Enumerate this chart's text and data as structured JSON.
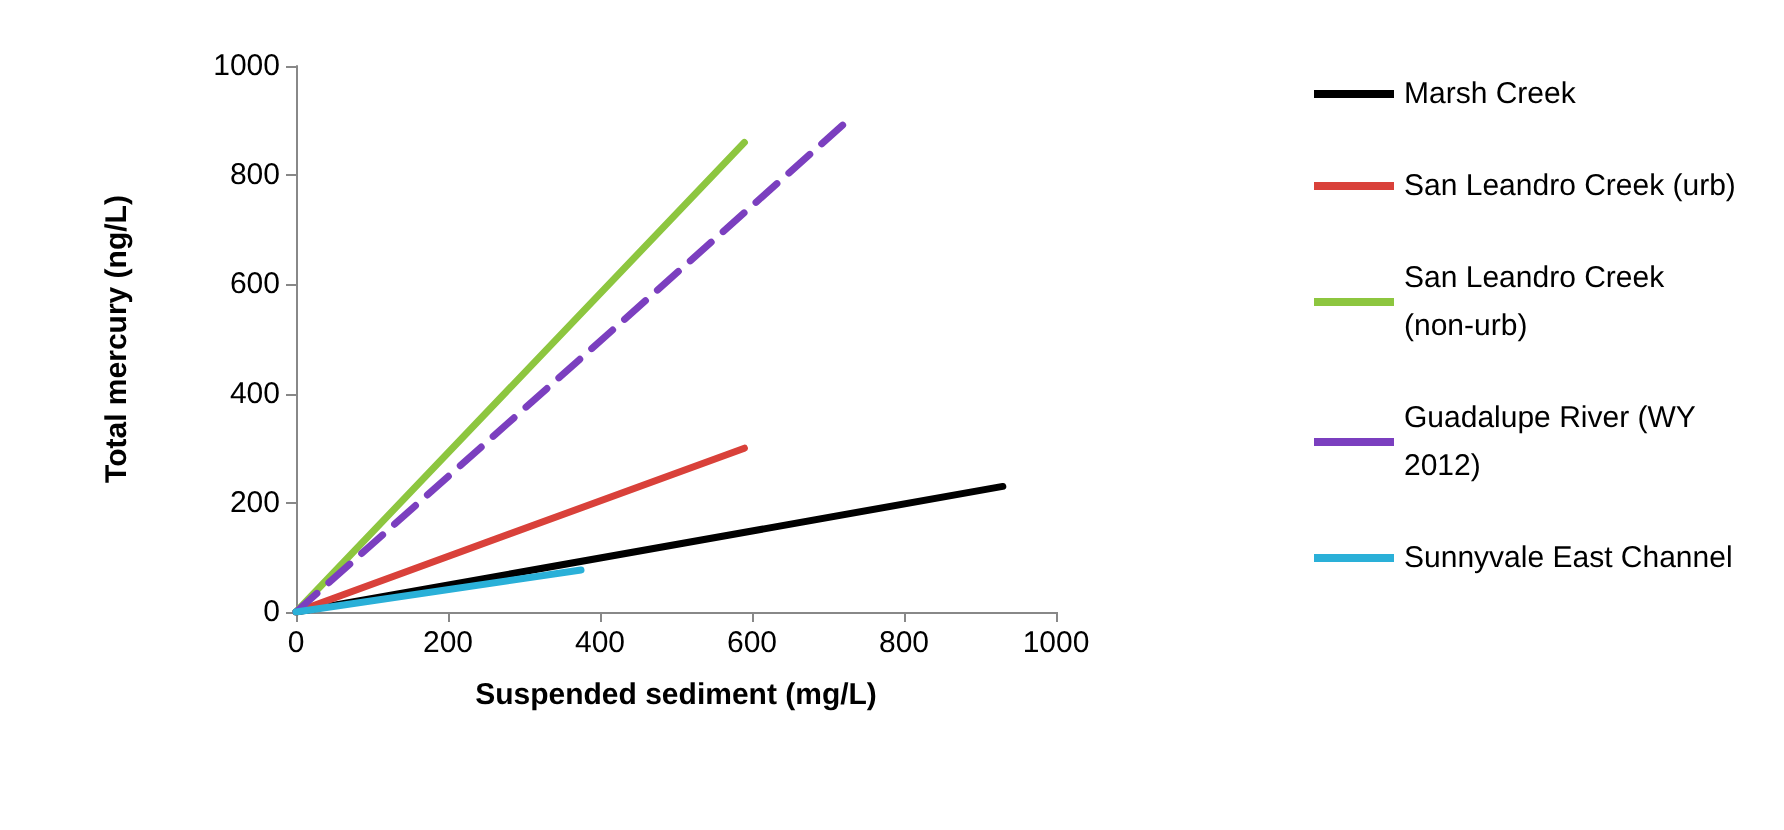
{
  "chart_data": {
    "type": "line",
    "xlabel": "Suspended sediment (mg/L)",
    "ylabel": "Total mercury (ng/L)",
    "xlim": [
      0,
      1000
    ],
    "xticks": [
      0,
      200,
      400,
      600,
      800,
      1000
    ],
    "ylim": [
      0,
      1000
    ],
    "yticks": [
      0,
      200,
      400,
      600,
      800,
      1000
    ],
    "grid": false,
    "legend": "right",
    "marker": "none",
    "line_style": "solid",
    "series": [
      {
        "name": "Marsh Creek",
        "color": "#000000",
        "x": [
          0,
          930
        ],
        "values": [
          0,
          230
        ]
      },
      {
        "name": "San Leandro Creek (urb)",
        "color": "#d9413a",
        "x": [
          0,
          590
        ],
        "values": [
          0,
          300
        ]
      },
      {
        "name": "San Leandro Creek (non-urb)",
        "color": "#8dc63f",
        "x": [
          0,
          590
        ],
        "values": [
          0,
          860
        ]
      },
      {
        "name": "Guadalupe River (WY 2012)",
        "color": "#7b3fbf",
        "x": [
          0,
          730
        ],
        "values": [
          0,
          905
        ],
        "line_style": "dashed"
      },
      {
        "name": "Sunnyvale East Channel",
        "color": "#2ab0d8",
        "x": [
          0,
          375
        ],
        "values": [
          0,
          77
        ]
      }
    ]
  }
}
